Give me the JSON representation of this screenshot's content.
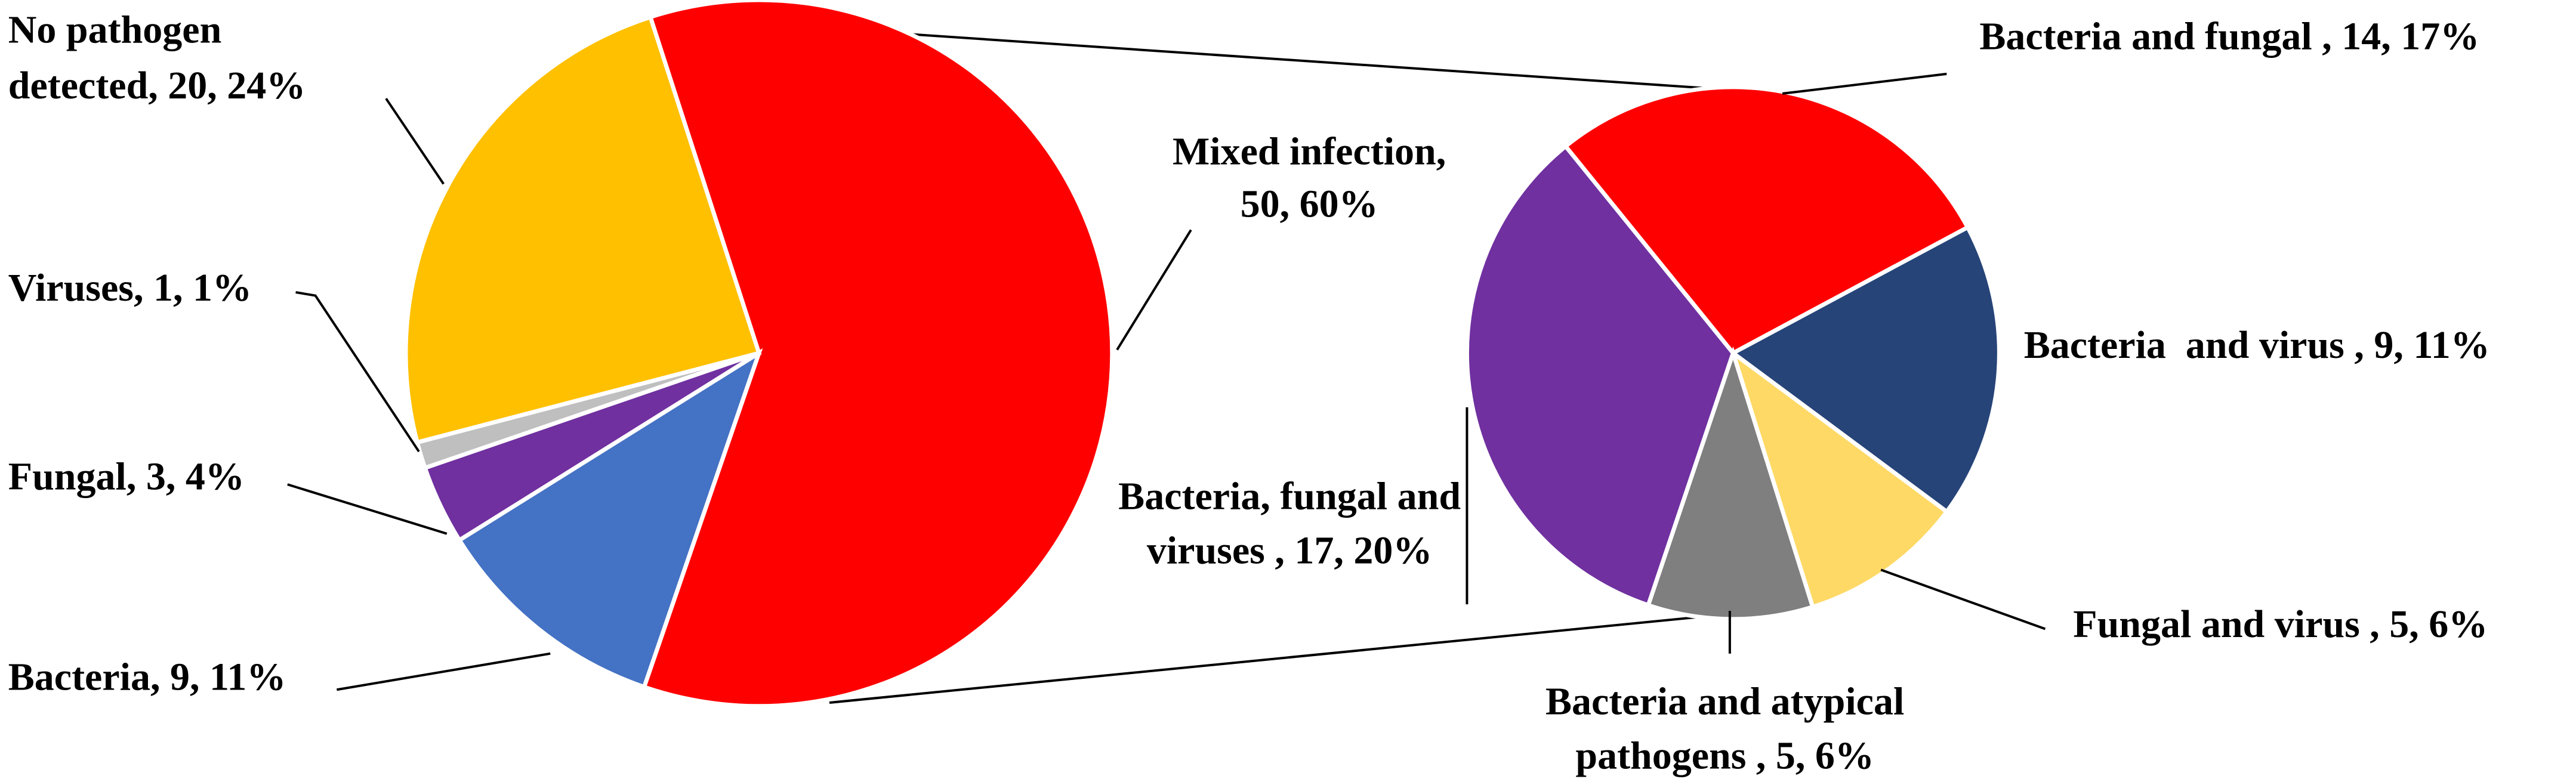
{
  "chart_data": [
    {
      "type": "pie",
      "values": [
        50,
        9,
        3,
        1,
        20
      ],
      "value_labels": [
        [
          "Mixed infection,",
          "50, 60%"
        ],
        [
          "Bacteria, 9, 11%"
        ],
        [
          "Fungal, 3, 4%"
        ],
        [
          "Viruses, 1, 1%"
        ],
        [
          "No pathogen",
          "detected, 20, 24%"
        ]
      ],
      "colors": [
        "#ff0000",
        "#4472c4",
        "#7030a0",
        "#bfbfbf",
        "#ffc000"
      ]
    },
    {
      "type": "pie",
      "values": [
        14,
        9,
        5,
        5,
        17
      ],
      "value_labels": [
        [
          "Bacteria and fungal , 14, 17%"
        ],
        [
          "Bacteria  and virus , 9, 11%"
        ],
        [
          "Fungal and virus , 5, 6%"
        ],
        [
          "Bacteria and atypical",
          "pathogens , 5, 6%"
        ],
        [
          "Bacteria, fungal and",
          "viruses , 17, 20%"
        ]
      ],
      "colors": [
        "#ff0000",
        "#264478",
        "#ffd966",
        "#7f7f7f",
        "#7030a0"
      ]
    }
  ]
}
